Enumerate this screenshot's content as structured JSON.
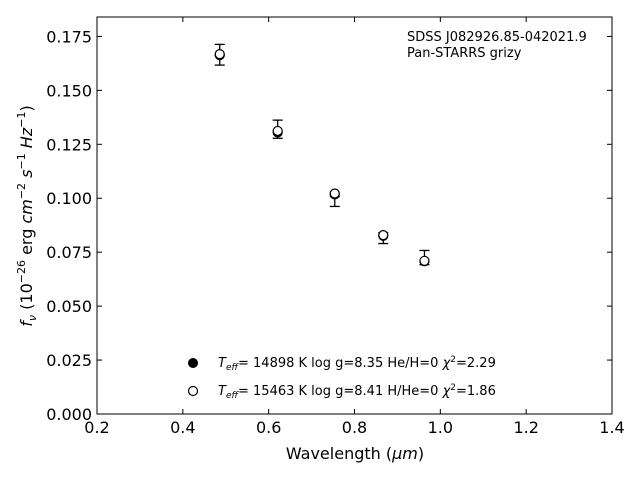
{
  "chart_data": {
    "type": "scatter",
    "annotation": [
      "SDSS J082926.85-042021.9",
      "Pan-STARRS grizy"
    ],
    "xlabel_prefix": "Wavelength (",
    "xlabel_unit": "μm",
    "xlabel_suffix": ")",
    "ylabel": "f_ν (10^-26 erg cm^-2 s^-1 Hz^-1)",
    "xlim": [
      0.2,
      1.4
    ],
    "ylim": [
      0.0,
      0.184
    ],
    "xticks": [
      0.2,
      0.4,
      0.6,
      0.8,
      1.0,
      1.2,
      1.4
    ],
    "xtick_labels": [
      "0.2",
      "0.4",
      "0.6",
      "0.8",
      "1.0",
      "1.2",
      "1.4"
    ],
    "yticks": [
      0.0,
      0.025,
      0.05,
      0.075,
      0.1,
      0.125,
      0.15,
      0.175
    ],
    "ytick_labels": [
      "0.000",
      "0.025",
      "0.050",
      "0.075",
      "0.100",
      "0.125",
      "0.150",
      "0.175"
    ],
    "grid": false,
    "legend_position": "lower-center",
    "observed": {
      "x": [
        0.486,
        0.621,
        0.754,
        0.867,
        0.963
      ],
      "y": [
        0.1665,
        0.132,
        0.0985,
        0.0815,
        0.0725
      ],
      "yerr": [
        0.0048,
        0.0042,
        0.0023,
        0.0025,
        0.0033
      ]
    },
    "series": [
      {
        "marker": "filled-circle",
        "label": "T_eff= 14898 K  log g=8.35  He/H=0  χ²=2.29",
        "x": [
          0.486,
          0.621,
          0.754,
          0.867,
          0.963
        ],
        "y": [
          0.1663,
          0.1305,
          0.1018,
          0.0826,
          0.0708
        ]
      },
      {
        "marker": "open-circle",
        "label": "T_eff= 15463 K  log g=8.41  H/He=0  χ²=1.86",
        "x": [
          0.486,
          0.621,
          0.754,
          0.867,
          0.963
        ],
        "y": [
          0.1668,
          0.1312,
          0.1022,
          0.0829,
          0.071
        ]
      }
    ],
    "legend": [
      {
        "marker": "filled-circle",
        "teff": "= 14898 K  log g=8.35  He/H=0  ",
        "chi_prefix": "χ",
        "chi_value": "=2.29"
      },
      {
        "marker": "open-circle",
        "teff": "= 15463 K  log g=8.41  H/He=0  ",
        "chi_prefix": "χ",
        "chi_value": "=1.86"
      }
    ]
  }
}
